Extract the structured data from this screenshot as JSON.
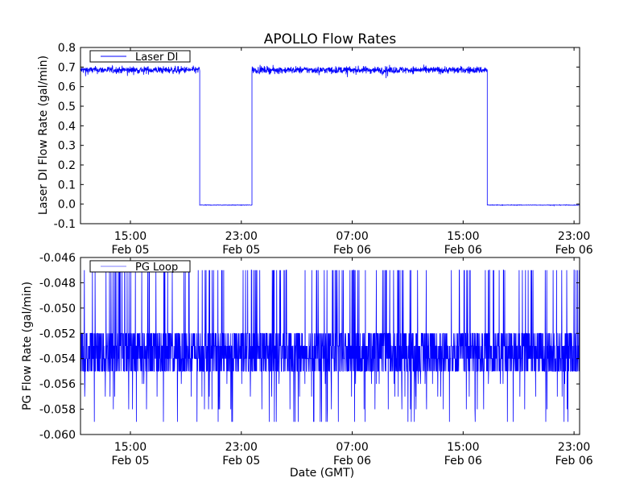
{
  "chart_data": [
    {
      "type": "line",
      "title": "APOLLO Flow Rates",
      "xlabel": "",
      "ylabel": "Laser DI Flow Rate (gal/min)",
      "x_unit": "hours since Feb 05 00:00 GMT",
      "xlim": [
        11.4,
        47.4
      ],
      "ylim": [
        -0.1,
        0.8
      ],
      "yticks": [
        -0.1,
        0.0,
        0.1,
        0.2,
        0.3,
        0.4,
        0.5,
        0.6,
        0.7,
        0.8
      ],
      "ytick_labels": [
        "-0.1",
        "0.0",
        "0.1",
        "0.2",
        "0.3",
        "0.4",
        "0.5",
        "0.6",
        "0.7",
        "0.8"
      ],
      "xticks": [
        15,
        23,
        31,
        39,
        47
      ],
      "xtick_labels": [
        [
          "15:00",
          "Feb 05"
        ],
        [
          "23:00",
          "Feb 05"
        ],
        [
          "07:00",
          "Feb 06"
        ],
        [
          "15:00",
          "Feb 06"
        ],
        [
          "23:00",
          "Feb 06"
        ]
      ],
      "legend": {
        "entries": [
          "Laser DI"
        ],
        "placement": "top-left"
      },
      "series": [
        {
          "name": "Laser DI",
          "color": "#0000ff",
          "segments": [
            {
              "start": 11.4,
              "end": 20.0,
              "level": 0.685,
              "noise": 0.015
            },
            {
              "start": 20.0,
              "end": 23.77,
              "level": -0.005,
              "noise": 0.001
            },
            {
              "start": 23.77,
              "end": 40.74,
              "level": 0.685,
              "noise": 0.015
            },
            {
              "start": 40.74,
              "end": 47.4,
              "level": -0.005,
              "noise": 0.001
            }
          ]
        }
      ]
    },
    {
      "type": "line",
      "title": "",
      "xlabel": "Date (GMT)",
      "ylabel": "PG Flow Rate (gal/min)",
      "x_unit": "hours since Feb 05 00:00 GMT",
      "xlim": [
        11.4,
        47.4
      ],
      "ylim": [
        -0.06,
        -0.046
      ],
      "yticks": [
        -0.06,
        -0.058,
        -0.056,
        -0.054,
        -0.052,
        -0.05,
        -0.048,
        -0.046
      ],
      "ytick_labels": [
        "-0.060",
        "-0.058",
        "-0.056",
        "-0.054",
        "-0.052",
        "-0.050",
        "-0.048",
        "-0.046"
      ],
      "xticks": [
        15,
        23,
        31,
        39,
        47
      ],
      "xtick_labels": [
        [
          "15:00",
          "Feb 05"
        ],
        [
          "23:00",
          "Feb 05"
        ],
        [
          "07:00",
          "Feb 06"
        ],
        [
          "15:00",
          "Feb 06"
        ],
        [
          "23:00",
          "Feb 06"
        ]
      ],
      "legend": {
        "entries": [
          "PG Loop"
        ],
        "placement": "top-left"
      },
      "series": [
        {
          "name": "PG Loop",
          "color": "#0000ff",
          "typical_range": [
            -0.055,
            -0.052
          ],
          "min": -0.059,
          "max": -0.047,
          "resolution": 0.001
        }
      ]
    }
  ]
}
